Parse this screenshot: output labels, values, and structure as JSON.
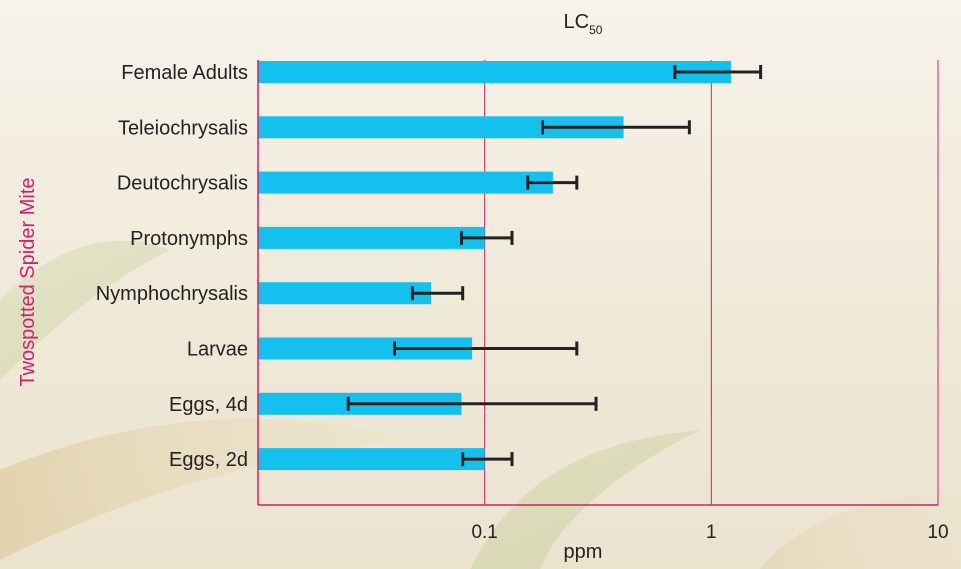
{
  "chart_data": {
    "type": "bar",
    "orientation": "horizontal",
    "title": "LC",
    "title_subscript": "50",
    "xlabel": "ppm",
    "ylabel": "Twospotted Spider Mite",
    "x_scale": "log",
    "xlim": [
      0.01,
      10
    ],
    "x_ticks": [
      {
        "value": 0.1,
        "label": "0.1"
      },
      {
        "value": 1,
        "label": "1"
      },
      {
        "value": 10,
        "label": "10"
      }
    ],
    "grid": true,
    "categories": [
      "Female Adults",
      "Teleiochrysalis",
      "Deutochrysalis",
      "Protonymphs",
      "Nymphochrysalis",
      "Larvae",
      "Eggs, 4d",
      "Eggs, 2d"
    ],
    "values": [
      1.22,
      0.41,
      0.2,
      0.1,
      0.058,
      0.088,
      0.079,
      0.1
    ],
    "error_low": [
      0.69,
      0.18,
      0.155,
      0.079,
      0.048,
      0.04,
      0.025,
      0.08
    ],
    "error_high": [
      1.65,
      0.8,
      0.255,
      0.132,
      0.08,
      0.255,
      0.31,
      0.132
    ],
    "bar_color": "#14c1ee",
    "error_color": "#222222",
    "axis_color": "#d01f6e"
  }
}
